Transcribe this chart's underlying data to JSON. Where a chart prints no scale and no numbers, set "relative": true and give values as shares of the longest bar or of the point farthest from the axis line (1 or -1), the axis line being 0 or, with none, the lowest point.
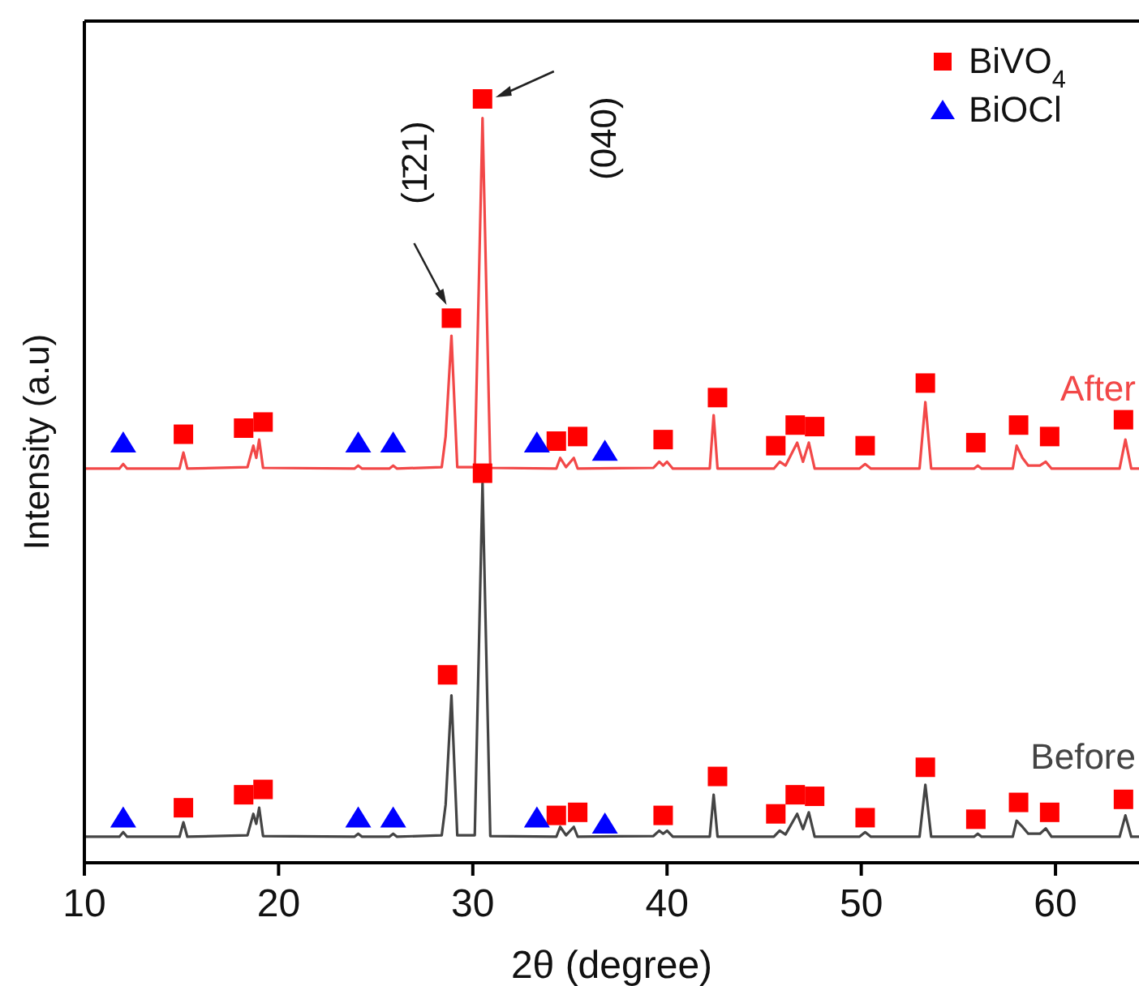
{
  "chart_data": {
    "type": "line",
    "relative": true,
    "xlabel": "2θ (degree)",
    "ylabel": "Intensity (a.u)",
    "xlim": [
      10,
      64.3
    ],
    "xticks": [
      10,
      20,
      30,
      40,
      50,
      60
    ],
    "tick_labels": "x",
    "legend": "top right",
    "series": [
      {
        "name": "After",
        "color": "#f24848",
        "marker": "none",
        "x": [
          10,
          11.8,
          12.0,
          12.2,
          14.9,
          15.1,
          15.3,
          18.4,
          18.7,
          18.85,
          19.0,
          19.2,
          23.9,
          24.1,
          24.3,
          25.7,
          25.9,
          26.1,
          28.4,
          28.6,
          28.9,
          29.2,
          30.1,
          30.5,
          30.9,
          34.3,
          34.5,
          34.8,
          35.2,
          35.4,
          39.3,
          39.6,
          39.8,
          40.0,
          40.3,
          42.2,
          42.4,
          42.6,
          45.5,
          45.8,
          46.1,
          46.7,
          47.0,
          47.3,
          47.6,
          49.9,
          50.2,
          50.5,
          53.0,
          53.3,
          53.6,
          55.8,
          56.0,
          56.2,
          57.8,
          58.0,
          58.3,
          58.6,
          59.2,
          59.5,
          59.8,
          63.3,
          63.6,
          63.9,
          64.3
        ],
        "values": [
          0.516,
          0.516,
          0.522,
          0.516,
          0.516,
          0.537,
          0.516,
          0.518,
          0.546,
          0.53,
          0.554,
          0.517,
          0.516,
          0.52,
          0.516,
          0.516,
          0.52,
          0.516,
          0.518,
          0.558,
          0.69,
          0.518,
          0.518,
          0.975,
          0.517,
          0.516,
          0.53,
          0.518,
          0.53,
          0.516,
          0.517,
          0.525,
          0.52,
          0.525,
          0.516,
          0.516,
          0.586,
          0.516,
          0.516,
          0.525,
          0.52,
          0.55,
          0.525,
          0.55,
          0.516,
          0.516,
          0.522,
          0.516,
          0.516,
          0.603,
          0.516,
          0.516,
          0.52,
          0.516,
          0.516,
          0.546,
          0.53,
          0.52,
          0.52,
          0.525,
          0.516,
          0.516,
          0.554,
          0.516,
          0.516
        ]
      },
      {
        "name": "Before",
        "color": "#444444",
        "marker": "none",
        "x": [
          10,
          11.8,
          12.0,
          12.2,
          14.9,
          15.1,
          15.3,
          18.4,
          18.7,
          18.85,
          19.0,
          19.2,
          23.9,
          24.1,
          24.3,
          25.7,
          25.9,
          26.1,
          28.4,
          28.6,
          28.9,
          29.2,
          30.1,
          30.5,
          30.9,
          34.3,
          34.5,
          34.8,
          35.2,
          35.4,
          39.3,
          39.6,
          39.8,
          40.0,
          40.3,
          42.2,
          42.4,
          42.6,
          45.5,
          45.8,
          46.1,
          46.7,
          47.0,
          47.3,
          47.6,
          49.9,
          50.2,
          50.5,
          53.0,
          53.3,
          53.6,
          55.8,
          56.0,
          56.2,
          57.8,
          58.0,
          58.3,
          58.6,
          59.2,
          59.5,
          59.8,
          63.3,
          63.6,
          63.9,
          64.3
        ],
        "values": [
          0.034,
          0.034,
          0.04,
          0.034,
          0.034,
          0.053,
          0.034,
          0.036,
          0.064,
          0.051,
          0.072,
          0.035,
          0.034,
          0.038,
          0.034,
          0.034,
          0.038,
          0.034,
          0.036,
          0.076,
          0.219,
          0.036,
          0.036,
          0.497,
          0.035,
          0.034,
          0.047,
          0.036,
          0.047,
          0.034,
          0.035,
          0.042,
          0.038,
          0.042,
          0.034,
          0.034,
          0.089,
          0.034,
          0.034,
          0.042,
          0.037,
          0.064,
          0.044,
          0.066,
          0.034,
          0.034,
          0.04,
          0.034,
          0.034,
          0.102,
          0.034,
          0.034,
          0.038,
          0.034,
          0.034,
          0.055,
          0.047,
          0.038,
          0.038,
          0.045,
          0.034,
          0.034,
          0.062,
          0.034,
          0.034
        ]
      },
      {
        "name": "BiVO$_{4}$",
        "type": "scatter",
        "color": "#ff0000",
        "marker": "square",
        "x": [
          15.1,
          18.2,
          19.2,
          28.9,
          30.5,
          34.3,
          35.4,
          39.8,
          42.6,
          45.6,
          46.6,
          47.6,
          50.2,
          53.3,
          55.9,
          58.1,
          59.7,
          63.5,
          15.1,
          18.2,
          19.2,
          28.7,
          30.5,
          34.3,
          35.4,
          39.8,
          42.6,
          45.6,
          46.6,
          47.6,
          50.2,
          53.3,
          55.9,
          58.1,
          59.7,
          63.5
        ],
        "values": [
          0.561,
          0.569,
          0.577,
          0.713,
          1.0,
          0.552,
          0.558,
          0.554,
          0.609,
          0.546,
          0.573,
          0.571,
          0.546,
          0.628,
          0.55,
          0.573,
          0.558,
          0.58,
          0.072,
          0.089,
          0.096,
          0.246,
          0.51,
          0.062,
          0.066,
          0.062,
          0.113,
          0.064,
          0.089,
          0.087,
          0.059,
          0.125,
          0.057,
          0.079,
          0.066,
          0.083
        ]
      },
      {
        "name": "BiOCl",
        "type": "scatter",
        "color": "#0000ff",
        "marker": "triangle",
        "x": [
          12.0,
          24.1,
          25.9,
          33.3,
          36.8,
          12.0,
          24.1,
          25.9,
          33.3,
          36.8
        ],
        "values": [
          0.55,
          0.55,
          0.55,
          0.55,
          0.539,
          0.059,
          0.059,
          0.059,
          0.059,
          0.051
        ]
      }
    ],
    "annotations": [
      "(040)",
      "(1̄21)"
    ]
  }
}
